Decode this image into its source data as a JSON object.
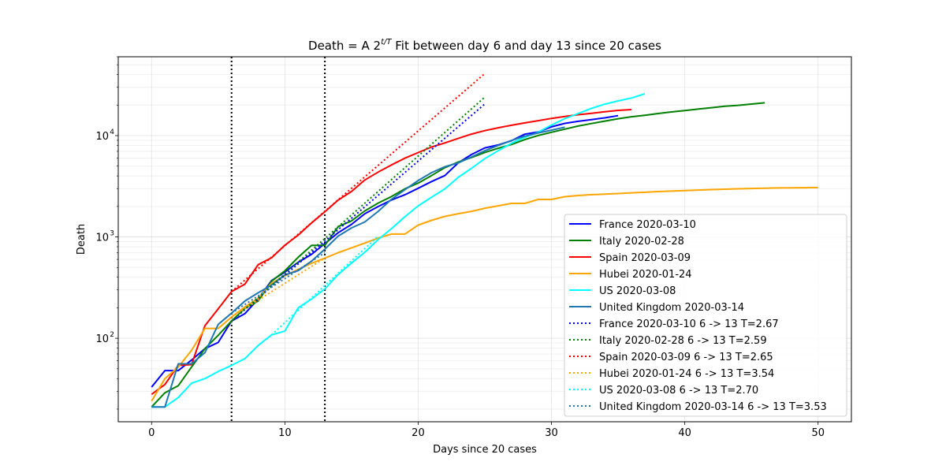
{
  "chart_data": {
    "type": "line",
    "title": "Death = A 2",
    "title_superscript": "t/T",
    "title_suffix": " Fit between day 6 and day 13 since 20 cases",
    "xlabel": "Days since 20 cases",
    "ylabel": "Death",
    "xlim": [
      -2.5,
      52.5
    ],
    "ylim": [
      15,
      60000
    ],
    "yscale": "log",
    "grid": true,
    "legend_position": "lower right",
    "x_ticks": [
      0,
      10,
      20,
      30,
      40,
      50
    ],
    "x_tick_labels": [
      "0",
      "10",
      "20",
      "30",
      "40",
      "50"
    ],
    "y_ticks": [
      100,
      1000,
      10000
    ],
    "y_tick_labels": [
      "10",
      "10",
      "10"
    ],
    "y_tick_exponents": [
      "2",
      "3",
      "4"
    ],
    "vertical_lines": [
      6,
      13
    ],
    "series": [
      {
        "name": "France 2020-03-10",
        "color": "#0000ff",
        "style": "solid",
        "x": [
          0,
          1,
          2,
          3,
          4,
          5,
          6,
          7,
          8,
          9,
          10,
          11,
          12,
          13,
          14,
          15,
          16,
          17,
          18,
          19,
          20,
          21,
          22,
          23,
          24,
          25,
          26,
          27,
          28,
          29,
          30,
          31,
          32,
          33,
          34,
          35
        ],
        "y": [
          33,
          48,
          48,
          61,
          79,
          91,
          148,
          175,
          244,
          372,
          450,
          562,
          674,
          860,
          1100,
          1331,
          1696,
          1995,
          2314,
          2606,
          3024,
          3523,
          4032,
          5387,
          6507,
          7560,
          8078,
          8911,
          10328,
          10869,
          12210,
          13197,
          13832,
          14393,
          14967,
          15729
        ]
      },
      {
        "name": "Italy 2020-02-28",
        "color": "#008000",
        "style": "solid",
        "x": [
          0,
          1,
          2,
          3,
          4,
          5,
          6,
          7,
          8,
          9,
          10,
          11,
          12,
          13,
          14,
          15,
          16,
          17,
          18,
          19,
          20,
          21,
          22,
          23,
          24,
          25,
          26,
          27,
          28,
          29,
          30,
          31,
          32,
          33,
          34,
          35,
          36,
          37,
          38,
          39,
          40,
          41,
          42,
          43,
          44,
          45,
          46
        ],
        "y": [
          21,
          29,
          34,
          52,
          79,
          107,
          148,
          197,
          233,
          366,
          463,
          631,
          827,
          827,
          1266,
          1441,
          1809,
          2158,
          2503,
          2978,
          3405,
          4032,
          4825,
          5476,
          6077,
          6820,
          7503,
          8165,
          9134,
          10023,
          10779,
          11591,
          12428,
          13155,
          13915,
          14681,
          15362,
          15887,
          16523,
          17127,
          17669,
          18279,
          18849,
          19468,
          19899,
          20465,
          21067
        ]
      },
      {
        "name": "Spain 2020-03-09",
        "color": "#ff0000",
        "style": "solid",
        "x": [
          0,
          1,
          2,
          3,
          4,
          5,
          6,
          7,
          8,
          9,
          10,
          11,
          12,
          13,
          14,
          15,
          16,
          17,
          18,
          19,
          20,
          21,
          22,
          23,
          24,
          25,
          26,
          27,
          28,
          29,
          30,
          31,
          32,
          33,
          34,
          35,
          36
        ],
        "y": [
          28,
          35,
          54,
          55,
          133,
          195,
          289,
          342,
          533,
          623,
          830,
          1043,
          1375,
          1772,
          2311,
          2808,
          3647,
          4365,
          5138,
          5982,
          6803,
          7716,
          8464,
          9387,
          10348,
          11198,
          11947,
          12641,
          13341,
          14045,
          14792,
          15447,
          16081,
          16606,
          17209,
          17756,
          18056
        ]
      },
      {
        "name": "Hubei 2020-01-24",
        "color": "#ffa500",
        "style": "solid",
        "x": [
          0,
          1,
          2,
          3,
          4,
          5,
          6,
          7,
          8,
          9,
          10,
          11,
          12,
          13,
          14,
          15,
          16,
          17,
          18,
          19,
          20,
          21,
          22,
          23,
          24,
          25,
          26,
          27,
          28,
          29,
          30,
          31,
          32,
          33,
          34,
          35,
          36,
          37,
          38,
          39,
          40,
          41,
          42,
          43,
          44,
          45,
          46,
          47,
          48,
          49,
          50
        ],
        "y": [
          24,
          40,
          52,
          76,
          125,
          125,
          162,
          204,
          249,
          350,
          414,
          479,
          549,
          618,
          699,
          780,
          871,
          974,
          1068,
          1068,
          1310,
          1457,
          1596,
          1696,
          1789,
          1921,
          2029,
          2144,
          2144,
          2346,
          2346,
          2495,
          2563,
          2615,
          2641,
          2682,
          2727,
          2761,
          2803,
          2835,
          2871,
          2902,
          2931,
          2959,
          2986,
          3008,
          3024,
          3046,
          3056,
          3062,
          3075
        ]
      },
      {
        "name": "US 2020-03-08",
        "color": "#00ffff",
        "style": "solid",
        "x": [
          0,
          1,
          2,
          3,
          4,
          5,
          6,
          7,
          8,
          9,
          10,
          11,
          12,
          13,
          14,
          15,
          16,
          17,
          18,
          19,
          20,
          21,
          22,
          23,
          24,
          25,
          26,
          27,
          28,
          29,
          30,
          31,
          32,
          33,
          34,
          35,
          36,
          37
        ],
        "y": [
          21,
          21,
          26,
          36,
          40,
          47,
          54,
          63,
          85,
          108,
          118,
          200,
          244,
          307,
          427,
          552,
          706,
          942,
          1209,
          1581,
          2026,
          2467,
          2978,
          3873,
          4757,
          5926,
          7087,
          8407,
          9619,
          10783,
          12722,
          14695,
          16478,
          18586,
          20463,
          22020,
          23529,
          25831
        ]
      },
      {
        "name": "United Kingdom 2020-03-14",
        "color": "#1f77b4",
        "style": "solid",
        "x": [
          0,
          1,
          2,
          3,
          4,
          5,
          6,
          7,
          8,
          9,
          10,
          11,
          12,
          13,
          14,
          15,
          16,
          17,
          18,
          19,
          20,
          21,
          22,
          23,
          24,
          25,
          26,
          27,
          28,
          29,
          30,
          31
        ],
        "y": [
          21,
          21,
          56,
          56,
          72,
          137,
          177,
          233,
          281,
          335,
          422,
          465,
          578,
          759,
          1019,
          1228,
          1408,
          1789,
          2352,
          2921,
          3605,
          4313,
          4934,
          5373,
          6159,
          7097,
          7978,
          8958,
          9875,
          10612,
          11329,
          12107
        ]
      },
      {
        "name": "France 2020-03-10 6 -> 13 T=2.67",
        "color": "#0000ff",
        "style": "dotted",
        "x": [
          6,
          25
        ],
        "y": [
          148,
          20500
        ]
      },
      {
        "name": "Italy 2020-02-28 6 -> 13 T=2.59",
        "color": "#008000",
        "style": "dotted",
        "x": [
          6,
          25
        ],
        "y": [
          148,
          24000
        ]
      },
      {
        "name": "Spain 2020-03-09 6 -> 13 T=2.65",
        "color": "#ff0000",
        "style": "dotted",
        "x": [
          6,
          25
        ],
        "y": [
          289,
          41000
        ]
      },
      {
        "name": "Hubei 2020-01-24 6 -> 13 T=3.54",
        "color": "#ffa500",
        "style": "dotted",
        "x": [
          6,
          13
        ],
        "y": [
          162,
          620
        ]
      },
      {
        "name": "US 2020-03-08 6 -> 13 T=2.70",
        "color": "#00ffff",
        "style": "dotted",
        "x": [
          9,
          17
        ],
        "y": [
          108,
          1020
        ]
      },
      {
        "name": "United Kingdom 2020-03-14 6 -> 13 T=3.53",
        "color": "#1f77b4",
        "style": "dotted",
        "x": [
          6,
          13
        ],
        "y": [
          177,
          700
        ]
      }
    ]
  }
}
